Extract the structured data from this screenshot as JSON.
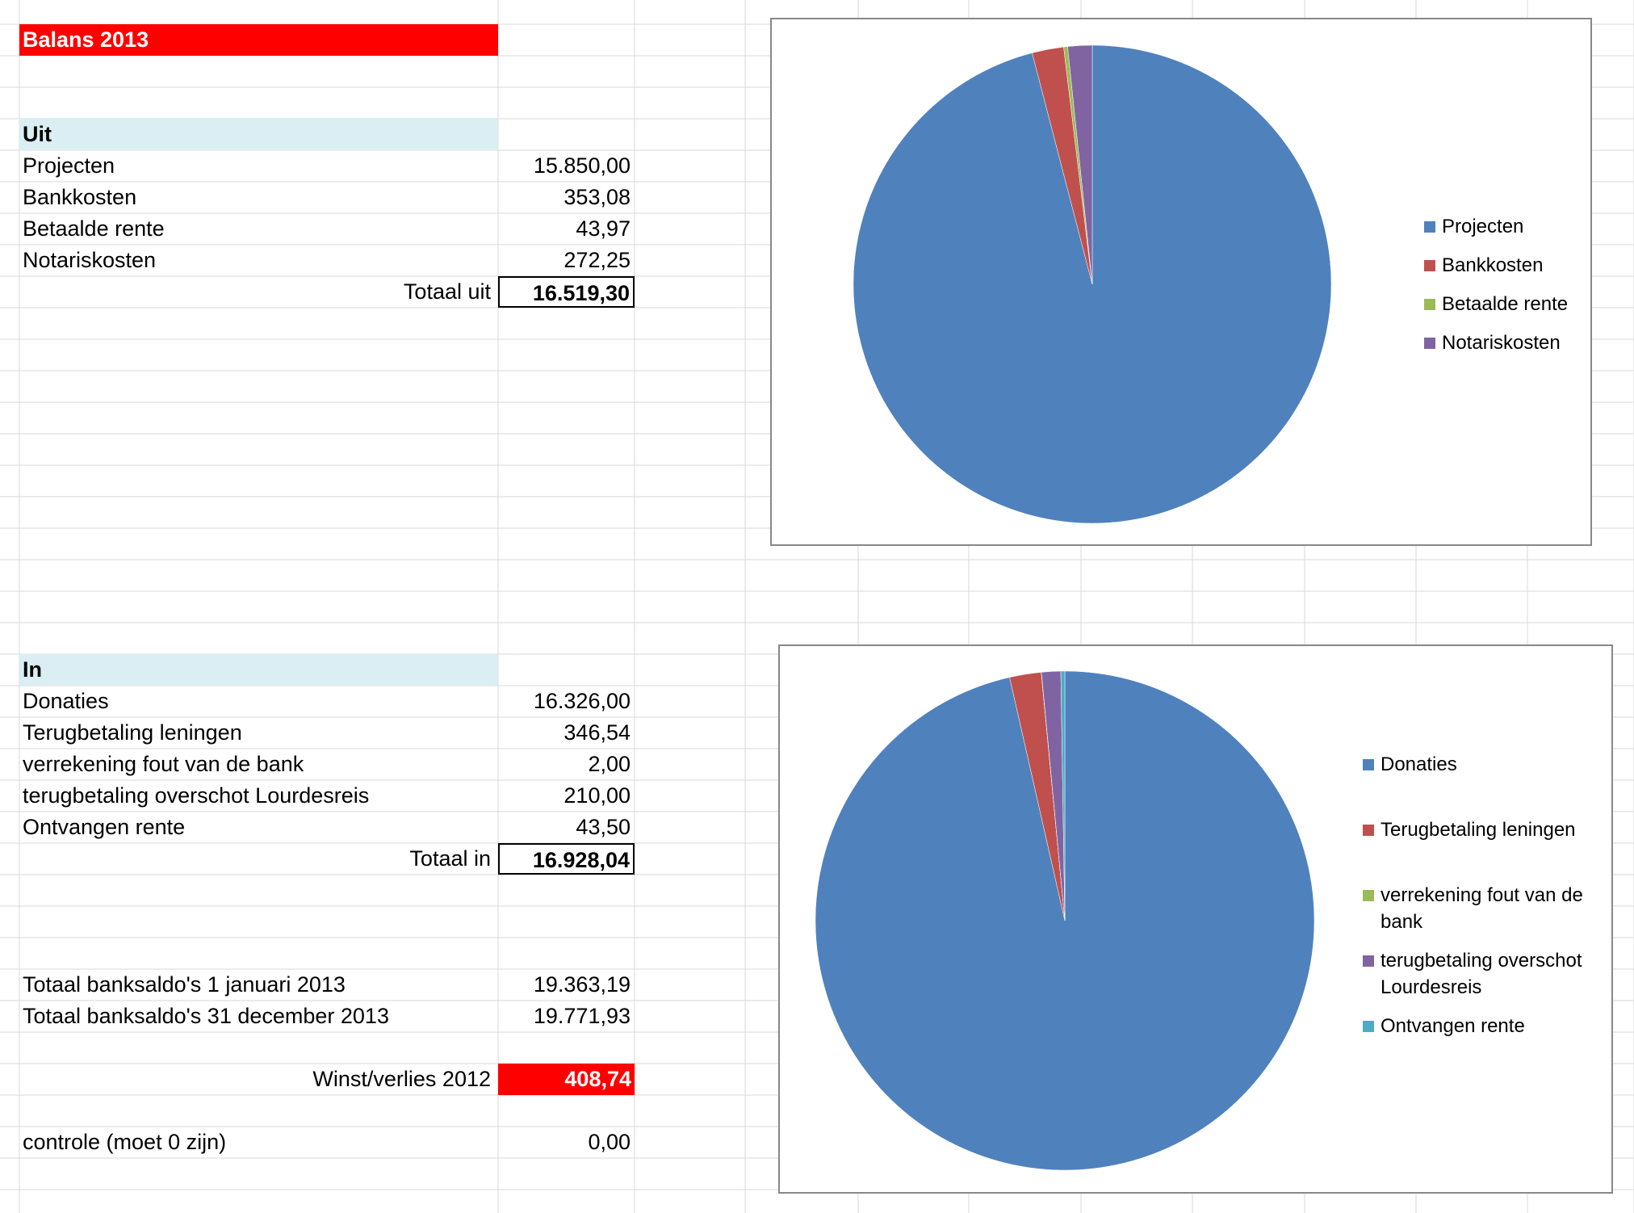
{
  "sheet": {
    "title": "Balans 2013",
    "uit": {
      "header": "Uit",
      "rows": [
        {
          "label": "Projecten",
          "value": "15.850,00"
        },
        {
          "label": "Bankkosten",
          "value": "353,08"
        },
        {
          "label": "Betaalde rente",
          "value": "43,97"
        },
        {
          "label": "Notariskosten",
          "value": "272,25"
        }
      ],
      "total_label": "Totaal uit",
      "total_value": "16.519,30"
    },
    "in": {
      "header": "In",
      "rows": [
        {
          "label": "Donaties",
          "value": "16.326,00"
        },
        {
          "label": "Terugbetaling leningen",
          "value": "346,54"
        },
        {
          "label": "verrekening fout van de bank",
          "value": "2,00"
        },
        {
          "label": "terugbetaling overschot Lourdesreis",
          "value": "210,00"
        },
        {
          "label": "Ontvangen rente",
          "value": "43,50"
        }
      ],
      "total_label": "Totaal in",
      "total_value": "16.928,04"
    },
    "saldo": [
      {
        "label": "Totaal banksaldo's 1 januari 2013",
        "value": "19.363,19"
      },
      {
        "label": "Totaal banksaldo's 31 december 2013",
        "value": "19.771,93"
      }
    ],
    "winst_label": "Winst/verlies 2012",
    "winst_value": "408,74",
    "controle_label": "controle (moet 0 zijn)",
    "controle_value": "0,00"
  },
  "colors": {
    "title_band": "#ff0000",
    "section_band": "#daeef3",
    "series": [
      "#4f81bd",
      "#c0504d",
      "#9bbb59",
      "#8064a2",
      "#4bacc6"
    ]
  },
  "chart_data": [
    {
      "type": "pie",
      "categories": [
        "Projecten",
        "Bankkosten",
        "Betaalde rente",
        "Notariskosten"
      ],
      "values": [
        15850.0,
        353.08,
        43.97,
        272.25
      ],
      "start_angle": "12 o'clock, clockwise",
      "legend": "right"
    },
    {
      "type": "pie",
      "categories": [
        "Donaties",
        "Terugbetaling leningen",
        "verrekening fout van de bank",
        "terugbetaling overschot Lourdesreis",
        "Ontvangen rente"
      ],
      "values": [
        16326.0,
        346.54,
        2.0,
        210.0,
        43.5
      ],
      "start_angle": "12 o'clock, clockwise",
      "legend": "right"
    }
  ]
}
